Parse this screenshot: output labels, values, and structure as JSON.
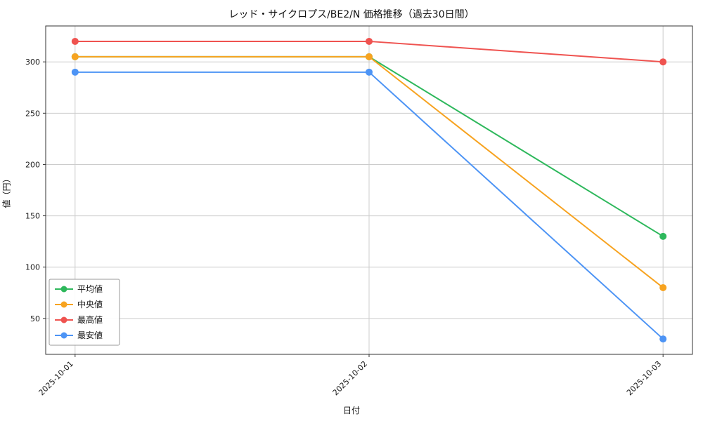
{
  "window": {
    "title": "レッド・サイクロプス/BE2/N 価格推移（過去30日間）"
  },
  "chart_data": {
    "type": "line",
    "title": "レッド・サイクロプス/BE2/N 価格推移（過去30日間）",
    "xlabel": "日付",
    "ylabel": "値（円）",
    "categories": [
      "2025-10-01",
      "2025-10-02",
      "2025-10-03"
    ],
    "series": [
      {
        "name": "平均値",
        "color": "#2eb85c",
        "values": [
          305,
          305,
          130
        ]
      },
      {
        "name": "中央値",
        "color": "#f7a320",
        "values": [
          305,
          305,
          80
        ]
      },
      {
        "name": "最高値",
        "color": "#ef5350",
        "values": [
          320,
          320,
          300
        ]
      },
      {
        "name": "最安値",
        "color": "#4d94f5",
        "values": [
          290,
          290,
          30
        ]
      }
    ],
    "ylim": [
      15,
      335
    ],
    "yticks": [
      50,
      100,
      150,
      200,
      250,
      300
    ],
    "grid": true,
    "legend_position": "lower left",
    "axis_color": "#333333",
    "grid_color": "#cccccc",
    "tick_label_color": "#1a1a1a",
    "marker_radius": 5,
    "line_width": 2
  }
}
